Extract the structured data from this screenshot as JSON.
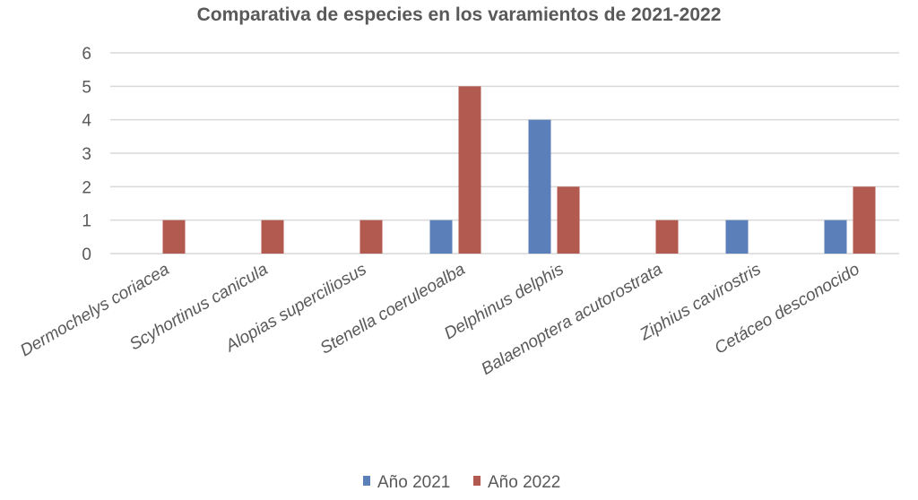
{
  "chart_data": {
    "type": "bar",
    "title": "Comparativa de especies en los varamientos de 2021-2022",
    "xlabel": "",
    "ylabel": "",
    "ylim": [
      0,
      6
    ],
    "yticks": [
      0,
      1,
      2,
      3,
      4,
      5,
      6
    ],
    "grid": true,
    "legend_position": "bottom",
    "categories": [
      "Dermochelys coriacea",
      "Scyhortinus canicula",
      "Alopias superciliosus",
      "Stenella coeruleoalba",
      "Delphinus delphis",
      "Balaenoptera acutorostrata",
      "Ziphius cavirostris",
      "Cetáceo desconocido"
    ],
    "series": [
      {
        "name": "Año 2021",
        "color": "#5b7fb8",
        "values": [
          0,
          0,
          0,
          1,
          4,
          0,
          1,
          1
        ]
      },
      {
        "name": "Año 2022",
        "color": "#b35a50",
        "values": [
          1,
          1,
          1,
          5,
          2,
          1,
          0,
          2
        ]
      }
    ]
  }
}
